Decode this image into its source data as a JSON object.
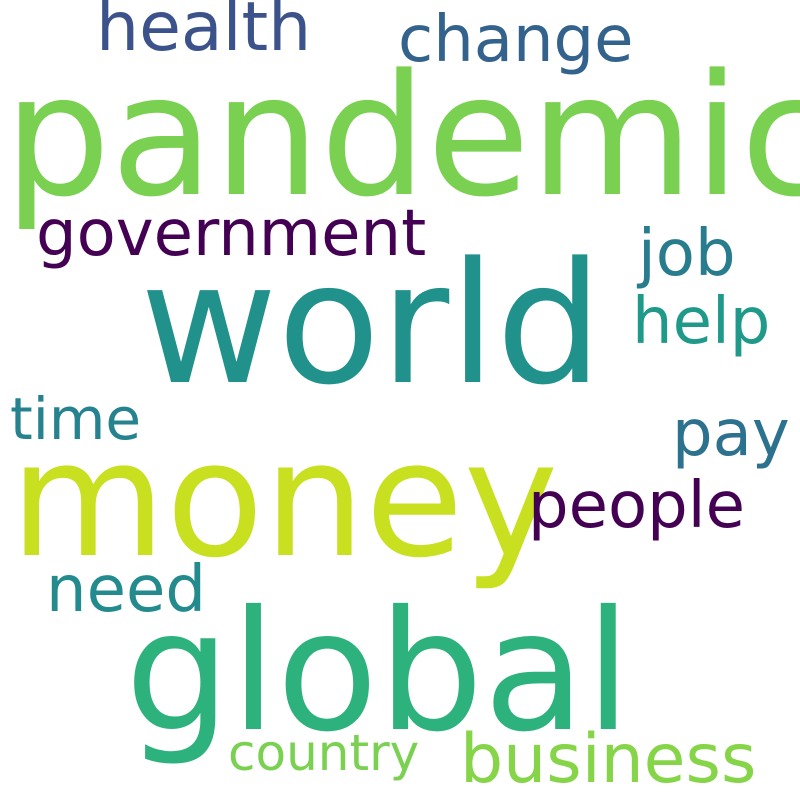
{
  "words": [
    {
      "text": "pandemic",
      "color": "#7ad151"
    },
    {
      "text": "world",
      "color": "#21918c"
    },
    {
      "text": "money",
      "color": "#c8e020"
    },
    {
      "text": "global",
      "color": "#2db27d"
    },
    {
      "text": "health",
      "color": "#3b528b"
    },
    {
      "text": "change",
      "color": "#33638d"
    },
    {
      "text": "government",
      "color": "#440154"
    },
    {
      "text": "job",
      "color": "#287c8e"
    },
    {
      "text": "help",
      "color": "#1f9a8a"
    },
    {
      "text": "time",
      "color": "#26828e"
    },
    {
      "text": "pay",
      "color": "#2c728e"
    },
    {
      "text": "people",
      "color": "#440154"
    },
    {
      "text": "need",
      "color": "#238a8d"
    },
    {
      "text": "country",
      "color": "#7ad151"
    },
    {
      "text": "business",
      "color": "#86d549"
    }
  ]
}
